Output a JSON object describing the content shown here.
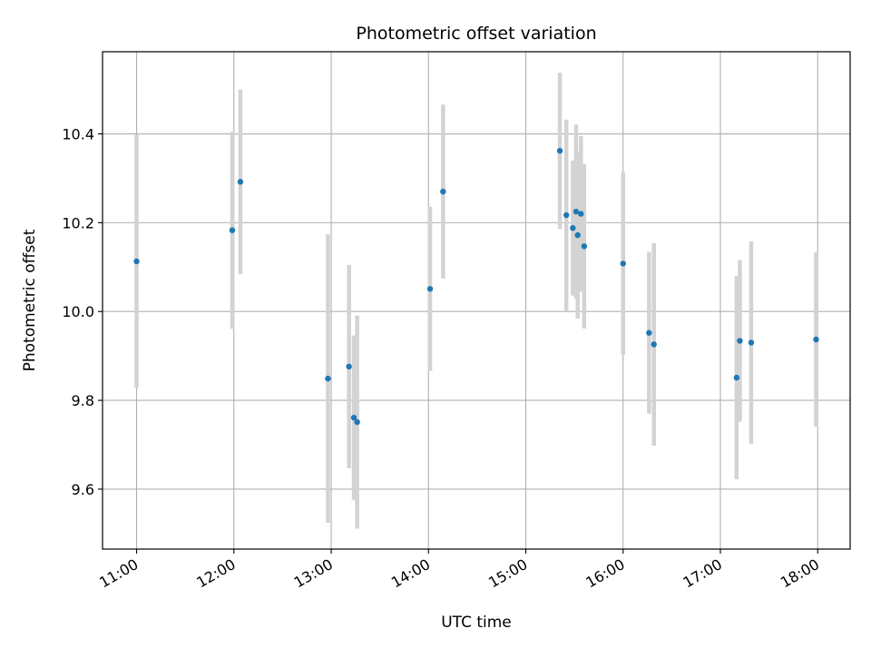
{
  "chart_data": {
    "type": "scatter",
    "title": "Photometric offset variation",
    "xlabel": "UTC time",
    "ylabel": "Photometric offset",
    "xlim": [
      "10:39",
      "18:20"
    ],
    "ylim": [
      9.465,
      10.585
    ],
    "xticks": [
      "11:00",
      "12:00",
      "13:00",
      "14:00",
      "15:00",
      "16:00",
      "17:00",
      "18:00"
    ],
    "yticks": [
      "9.6",
      "9.8",
      "10.0",
      "10.2",
      "10.4"
    ],
    "grid": true,
    "marker_color": "#1f77b4",
    "errorbar_color": "#d3d3d3",
    "points": [
      {
        "time": "11:00",
        "y": 10.113,
        "err": 0.285
      },
      {
        "time": "11:59",
        "y": 10.183,
        "err": 0.222
      },
      {
        "time": "12:04",
        "y": 10.292,
        "err": 0.208
      },
      {
        "time": "12:58",
        "y": 9.849,
        "err": 0.325
      },
      {
        "time": "13:11",
        "y": 9.876,
        "err": 0.229
      },
      {
        "time": "13:14",
        "y": 9.761,
        "err": 0.185
      },
      {
        "time": "13:16",
        "y": 9.751,
        "err": 0.24
      },
      {
        "time": "14:01",
        "y": 10.051,
        "err": 0.185
      },
      {
        "time": "14:09",
        "y": 10.27,
        "err": 0.196
      },
      {
        "time": "15:21",
        "y": 10.362,
        "err": 0.176
      },
      {
        "time": "15:25",
        "y": 10.217,
        "err": 0.215
      },
      {
        "time": "15:29",
        "y": 10.188,
        "err": 0.152
      },
      {
        "time": "15:31",
        "y": 10.225,
        "err": 0.196
      },
      {
        "time": "15:32",
        "y": 10.172,
        "err": 0.188
      },
      {
        "time": "15:34",
        "y": 10.22,
        "err": 0.175
      },
      {
        "time": "15:36",
        "y": 10.147,
        "err": 0.185
      },
      {
        "time": "16:00",
        "y": 10.108,
        "err": 0.205
      },
      {
        "time": "16:16",
        "y": 9.952,
        "err": 0.182
      },
      {
        "time": "16:19",
        "y": 9.926,
        "err": 0.228
      },
      {
        "time": "17:10",
        "y": 9.851,
        "err": 0.229
      },
      {
        "time": "17:12",
        "y": 9.934,
        "err": 0.182
      },
      {
        "time": "17:19",
        "y": 9.93,
        "err": 0.228
      },
      {
        "time": "17:59",
        "y": 9.937,
        "err": 0.196
      }
    ]
  }
}
